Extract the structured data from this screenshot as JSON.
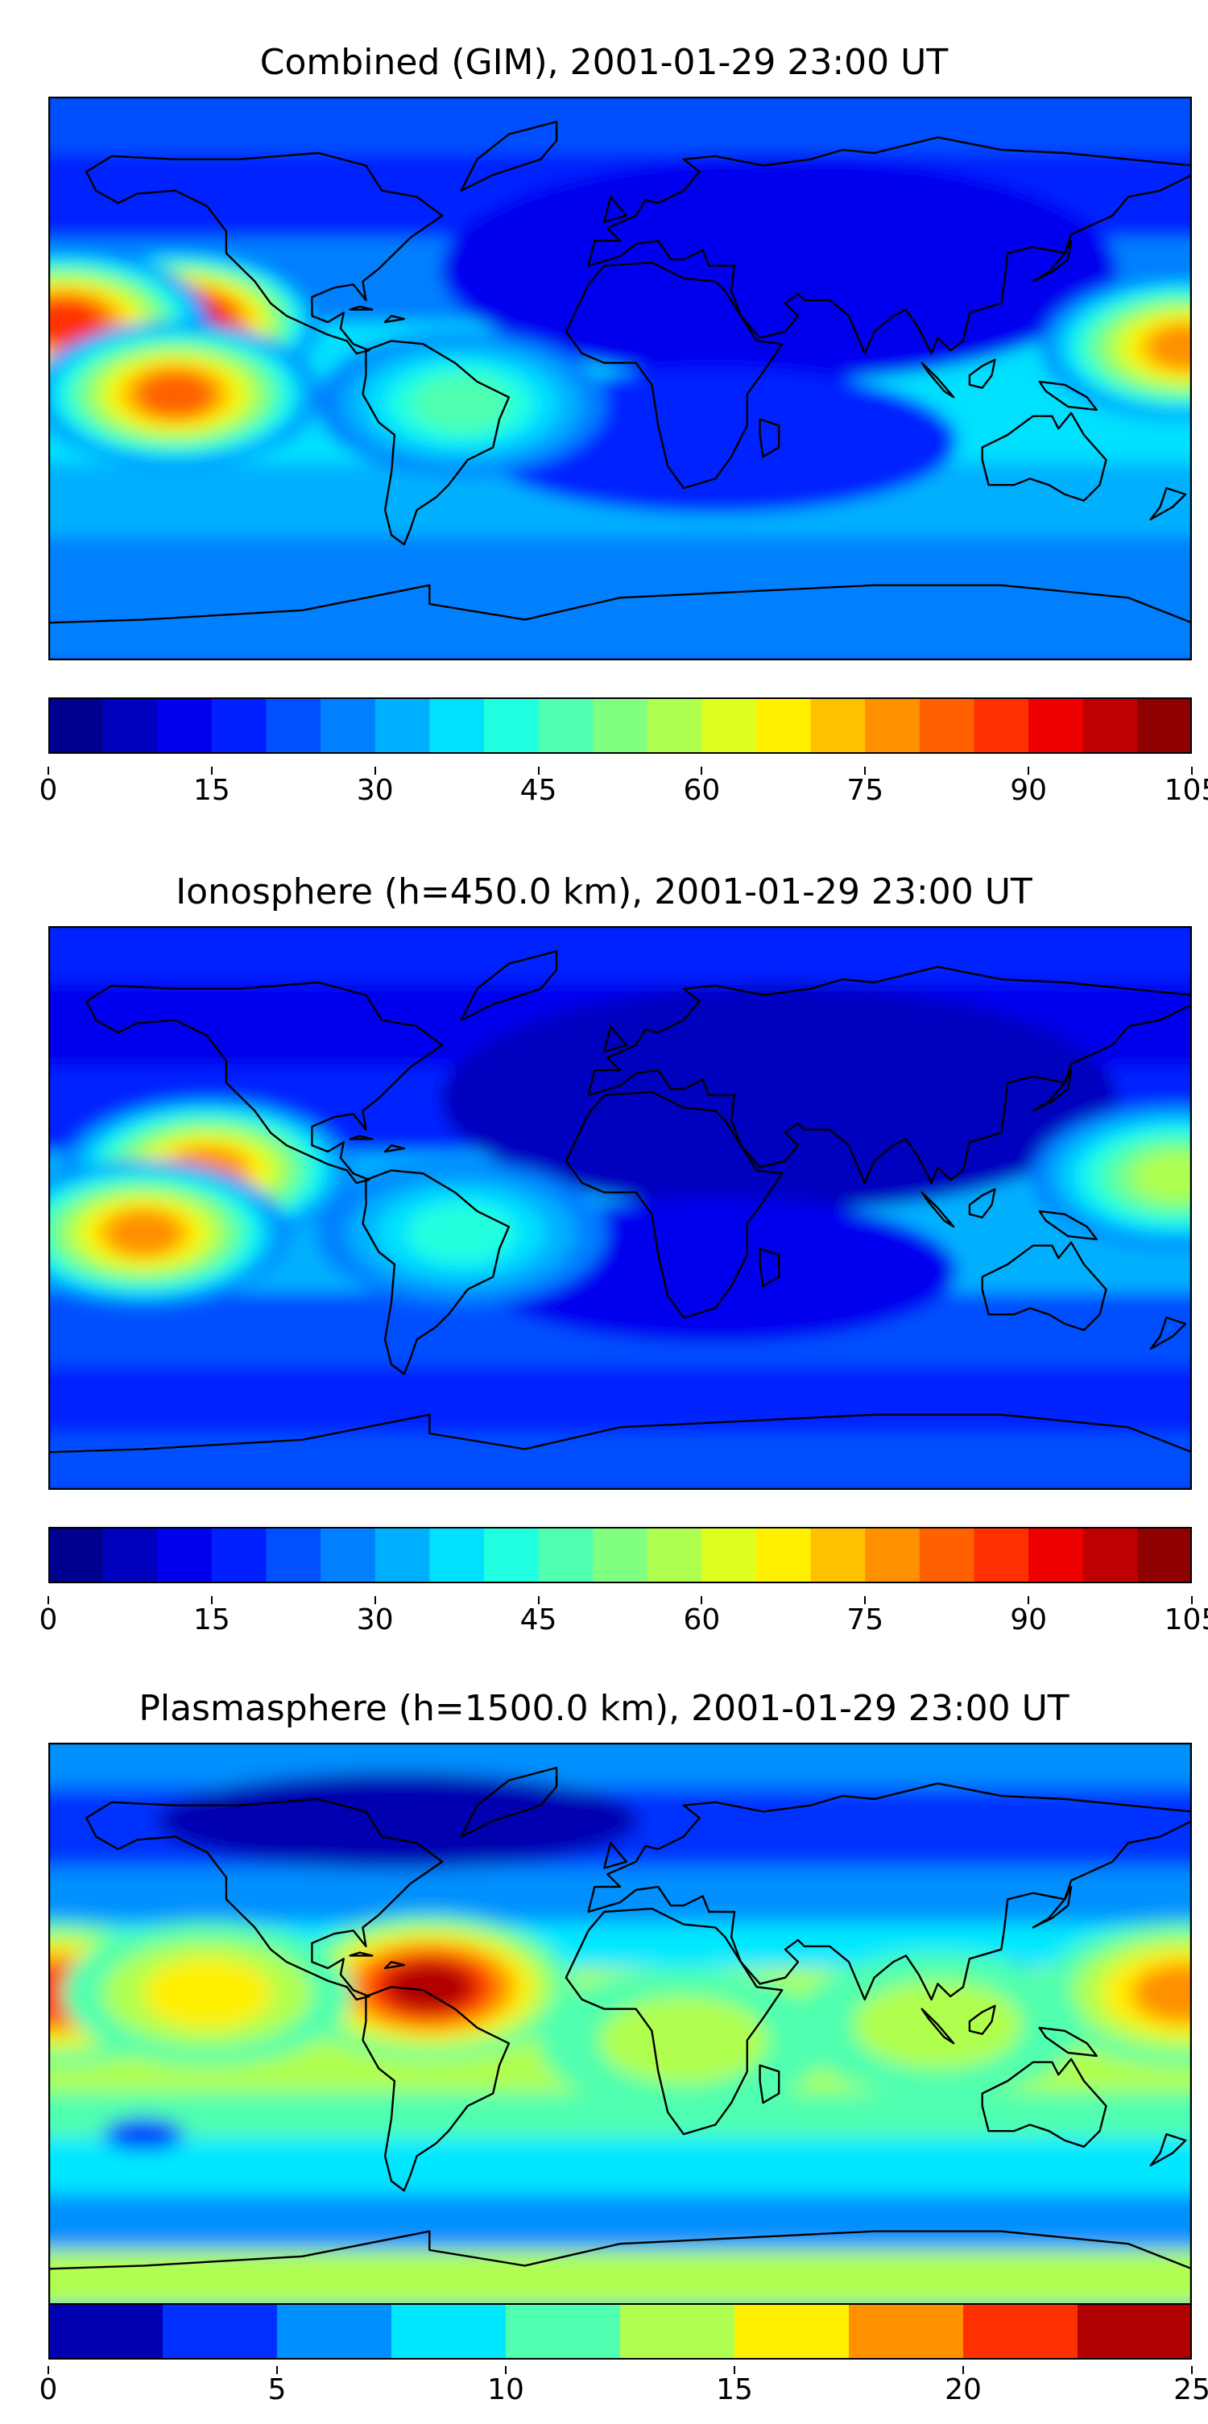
{
  "panels": [
    {
      "title": "Combined (GIM), 2001-01-29 23:00 UT",
      "colorbar": {
        "min": 0,
        "max": 105,
        "step": 5,
        "ticks": [
          "0",
          "15",
          "30",
          "45",
          "60",
          "75",
          "90",
          "105"
        ]
      },
      "hotspots": [
        {
          "lon": -140,
          "lat": 18,
          "level": 1.0
        },
        {
          "lon": -175,
          "lat": 18,
          "level": 0.85
        },
        {
          "lon": -140,
          "lat": -5,
          "level": 0.8
        },
        {
          "lon": 178,
          "lat": 10,
          "level": 0.75
        },
        {
          "lon": -50,
          "lat": -8,
          "level": 0.45
        }
      ]
    },
    {
      "title": "Ionosphere  (h=450.0 km), 2001-01-29 23:00 UT",
      "colorbar": {
        "min": 0,
        "max": 105,
        "step": 5,
        "ticks": [
          "0",
          "15",
          "30",
          "45",
          "60",
          "75",
          "90",
          "105"
        ]
      },
      "hotspots": [
        {
          "lon": -130,
          "lat": 12,
          "level": 0.75
        },
        {
          "lon": -150,
          "lat": -8,
          "level": 0.75
        },
        {
          "lon": 175,
          "lat": 10,
          "level": 0.55
        },
        {
          "lon": -50,
          "lat": -8,
          "level": 0.4
        }
      ]
    },
    {
      "title": "Plasmasphere (h=1500.0 km), 2001-01-29 23:00 UT",
      "colorbar": {
        "min": 0,
        "max": 25,
        "step": 2.5,
        "ticks": [
          "0",
          "5",
          "10",
          "15",
          "20",
          "25"
        ]
      },
      "hotspots": [
        {
          "lon": -60,
          "lat": 12,
          "level": 0.95
        },
        {
          "lon": -178,
          "lat": 10,
          "level": 0.85
        },
        {
          "lon": 178,
          "lat": 10,
          "level": 0.8
        },
        {
          "lon": -130,
          "lat": 10,
          "level": 0.65
        },
        {
          "lon": 20,
          "lat": -5,
          "level": 0.55
        },
        {
          "lon": 100,
          "lat": 0,
          "level": 0.55
        }
      ]
    }
  ],
  "colors": {
    "jet21": [
      "#00008f",
      "#0000bf",
      "#0000ef",
      "#0020ff",
      "#0050ff",
      "#0080ff",
      "#00b0ff",
      "#00e0ff",
      "#20ffdf",
      "#50ffaf",
      "#80ff80",
      "#afff50",
      "#dfff20",
      "#fff000",
      "#ffc000",
      "#ff9000",
      "#ff6000",
      "#ff3000",
      "#ef0000",
      "#bf0000",
      "#8f0000"
    ],
    "jet10": [
      "#0000b0",
      "#0030ff",
      "#0090ff",
      "#00e8ff",
      "#50ffaf",
      "#b0ff50",
      "#fff000",
      "#ff9000",
      "#ff3000",
      "#b00000"
    ]
  }
}
